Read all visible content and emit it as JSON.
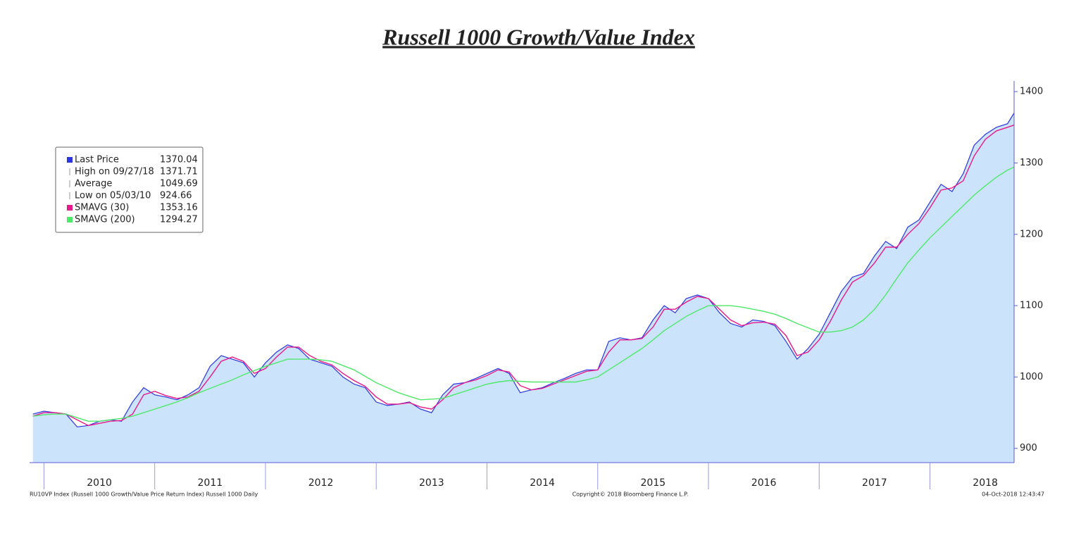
{
  "chart_data": {
    "type": "line",
    "title": "Russell 1000 Growth/Value Index",
    "x": [
      2009.9,
      2010.0,
      2010.1,
      2010.2,
      2010.3,
      2010.4,
      2010.5,
      2010.6,
      2010.7,
      2010.8,
      2010.9,
      2011.0,
      2011.1,
      2011.2,
      2011.3,
      2011.4,
      2011.5,
      2011.6,
      2011.7,
      2011.8,
      2011.9,
      2012.0,
      2012.1,
      2012.2,
      2012.3,
      2012.4,
      2012.5,
      2012.6,
      2012.7,
      2012.8,
      2012.9,
      2013.0,
      2013.1,
      2013.2,
      2013.3,
      2013.4,
      2013.5,
      2013.6,
      2013.7,
      2013.8,
      2013.9,
      2014.0,
      2014.1,
      2014.2,
      2014.3,
      2014.4,
      2014.5,
      2014.6,
      2014.7,
      2014.8,
      2014.9,
      2015.0,
      2015.1,
      2015.2,
      2015.3,
      2015.4,
      2015.5,
      2015.6,
      2015.7,
      2015.8,
      2015.9,
      2016.0,
      2016.1,
      2016.2,
      2016.3,
      2016.4,
      2016.5,
      2016.6,
      2016.7,
      2016.8,
      2016.9,
      2017.0,
      2017.1,
      2017.2,
      2017.3,
      2017.4,
      2017.5,
      2017.6,
      2017.7,
      2017.8,
      2017.9,
      2018.0,
      2018.1,
      2018.2,
      2018.3,
      2018.4,
      2018.5,
      2018.6,
      2018.7,
      2018.76
    ],
    "series": [
      {
        "name": "Last Price",
        "color": "#2b35e0",
        "fill": "#cce4fb",
        "values": [
          948,
          952,
          950,
          948,
          930,
          932,
          938,
          940,
          938,
          965,
          985,
          975,
          972,
          968,
          975,
          985,
          1015,
          1030,
          1025,
          1020,
          1000,
          1020,
          1035,
          1045,
          1040,
          1025,
          1020,
          1015,
          1000,
          990,
          985,
          965,
          960,
          962,
          965,
          955,
          950,
          975,
          990,
          992,
          998,
          1005,
          1012,
          1005,
          978,
          982,
          985,
          992,
          998,
          1005,
          1010,
          1010,
          1050,
          1055,
          1052,
          1055,
          1080,
          1100,
          1090,
          1110,
          1115,
          1110,
          1090,
          1075,
          1070,
          1080,
          1078,
          1072,
          1050,
          1025,
          1040,
          1060,
          1090,
          1120,
          1140,
          1145,
          1170,
          1190,
          1180,
          1210,
          1220,
          1245,
          1270,
          1260,
          1285,
          1325,
          1340,
          1350,
          1355,
          1370.04
        ]
      },
      {
        "name": "SMAVG (30)",
        "color": "#e8198b",
        "values": [
          945,
          950,
          950,
          948,
          940,
          932,
          935,
          938,
          939,
          948,
          975,
          980,
          974,
          970,
          972,
          980,
          1000,
          1022,
          1028,
          1022,
          1005,
          1012,
          1028,
          1042,
          1042,
          1030,
          1022,
          1017,
          1005,
          995,
          987,
          972,
          962,
          962,
          964,
          958,
          955,
          968,
          985,
          992,
          996,
          1002,
          1010,
          1007,
          988,
          982,
          984,
          990,
          996,
          1002,
          1008,
          1010,
          1035,
          1052,
          1052,
          1054,
          1070,
          1095,
          1095,
          1105,
          1113,
          1110,
          1095,
          1080,
          1072,
          1076,
          1077,
          1074,
          1058,
          1030,
          1035,
          1052,
          1078,
          1108,
          1133,
          1142,
          1160,
          1182,
          1182,
          1200,
          1215,
          1237,
          1262,
          1265,
          1275,
          1310,
          1333,
          1345,
          1350,
          1353.16
        ]
      },
      {
        "name": "SMAVG (200)",
        "color": "#4ee86a",
        "values": [
          945,
          947,
          948,
          948,
          943,
          938,
          938,
          940,
          942,
          945,
          950,
          955,
          960,
          965,
          971,
          978,
          984,
          990,
          996,
          1003,
          1009,
          1015,
          1020,
          1025,
          1025,
          1025,
          1024,
          1022,
          1016,
          1010,
          1001,
          992,
          985,
          978,
          973,
          968,
          969,
          970,
          975,
          980,
          985,
          990,
          993,
          995,
          994,
          993,
          993,
          993,
          993,
          993,
          996,
          1000,
          1010,
          1020,
          1030,
          1040,
          1052,
          1065,
          1075,
          1085,
          1093,
          1100,
          1100,
          1100,
          1098,
          1095,
          1092,
          1088,
          1082,
          1075,
          1069,
          1063,
          1063,
          1065,
          1070,
          1080,
          1095,
          1115,
          1138,
          1160,
          1178,
          1195,
          1210,
          1225,
          1240,
          1255,
          1268,
          1280,
          1290,
          1294.27
        ]
      }
    ],
    "legend": [
      {
        "label": "Last Price",
        "value": 1370.04,
        "color": "#2b35e0"
      },
      {
        "label": "High on 09/27/18",
        "value": 1371.71
      },
      {
        "label": "Average",
        "value": 1049.69
      },
      {
        "label": "Low on 05/03/10",
        "value": 924.66
      },
      {
        "label": "SMAVG (30)",
        "value": 1353.16,
        "color": "#e8198b"
      },
      {
        "label": "SMAVG (200)",
        "value": 1294.27,
        "color": "#4ee86a"
      }
    ],
    "xlim": [
      2009.87,
      2018.76
    ],
    "xticks": [
      2010,
      2011,
      2012,
      2013,
      2014,
      2015,
      2016,
      2017,
      2018
    ],
    "ylim": [
      880,
      1410
    ],
    "yticks": [
      900,
      1000,
      1100,
      1200,
      1300,
      1400
    ],
    "footer_left": "RU10VP Index (Russell 1000 Growth/Value Price Return Index) Russell 1000  Daily",
    "footer_center": "Copyright© 2018 Bloomberg Finance L.P.",
    "footer_right": "04-Oct-2018 12:43:47"
  }
}
